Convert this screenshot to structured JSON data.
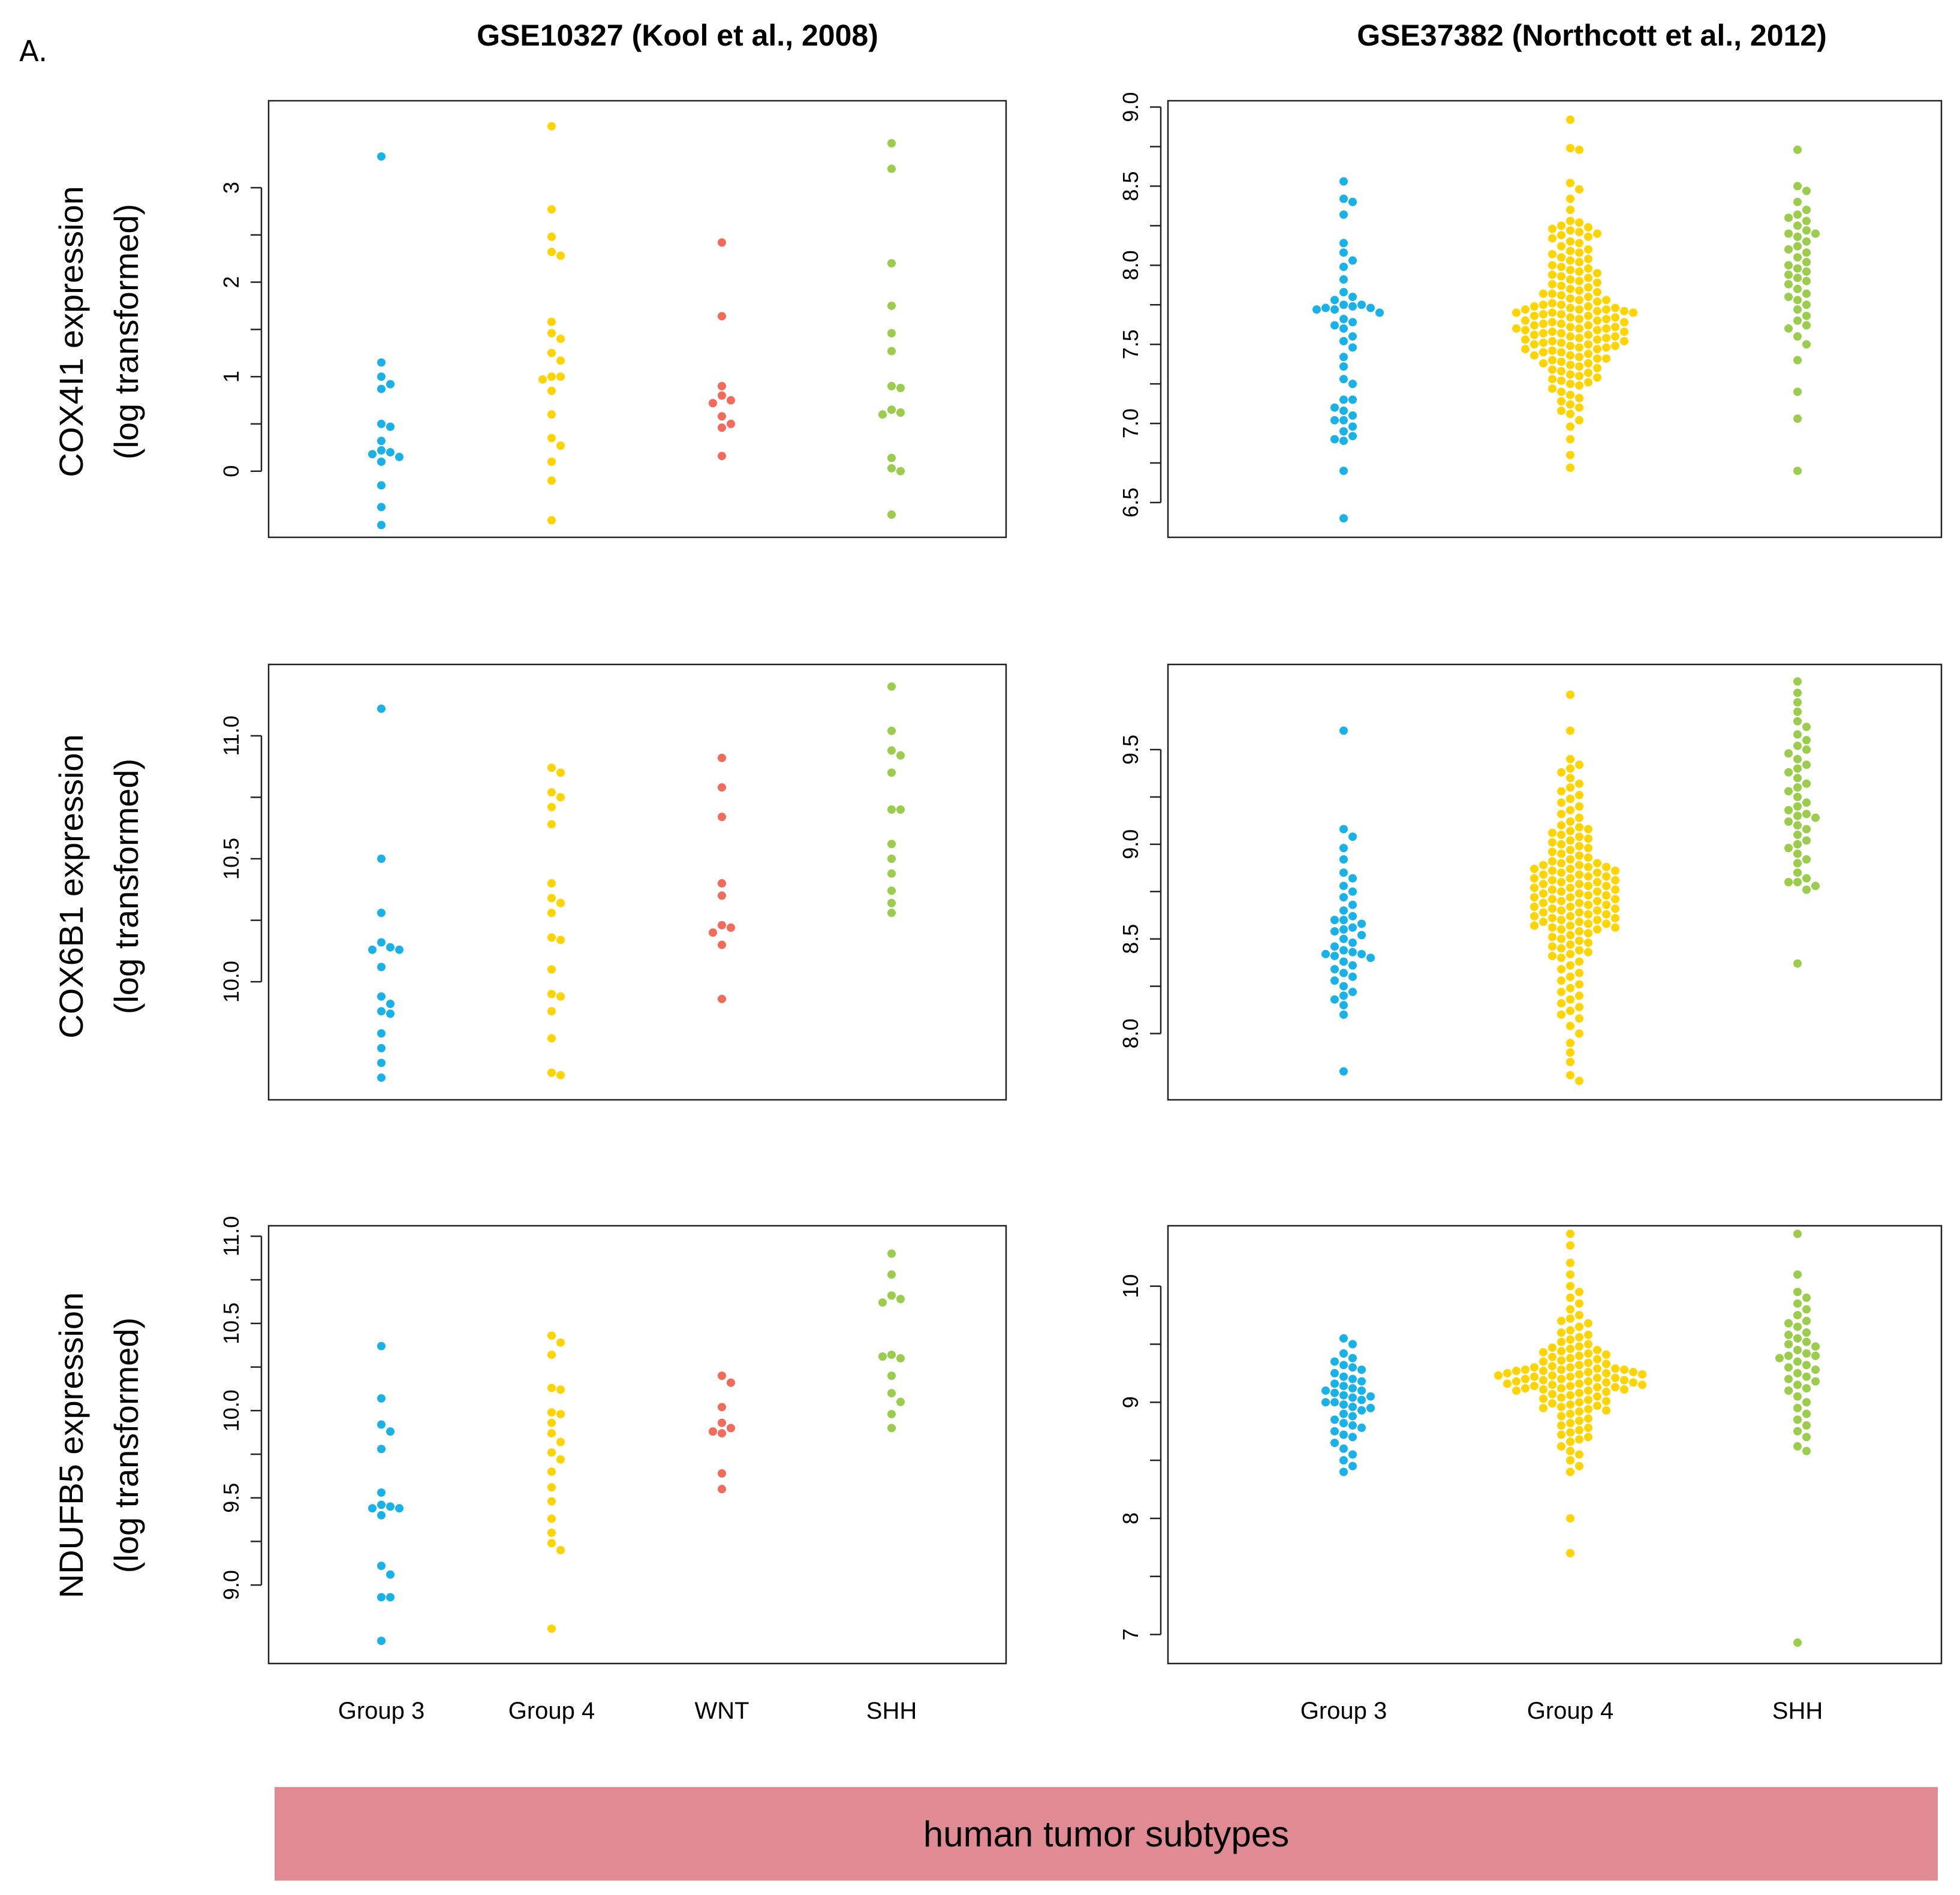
{
  "panel_label": "A.",
  "column_titles": [
    "GSE10327 (Kool et al., 2008)",
    "GSE37382 (Northcott et al., 2012)"
  ],
  "row_labels": [
    {
      "gene": "COX4I1 expression",
      "unit": "(log transformed)"
    },
    {
      "gene": "COX6B1 expression",
      "unit": "(log transformed)"
    },
    {
      "gene": "NDUFB5 expression",
      "unit": "(log transformed)"
    }
  ],
  "banner_label": "human tumor subtypes",
  "colors": {
    "Group 3": "#19b2e8",
    "Group 4": "#ffd400",
    "WNT": "#f26b5a",
    "SHH": "#9acd4c",
    "banner": "#e08a93"
  },
  "chart_data": [
    {
      "type": "scatter",
      "dataset": "GSE10327",
      "gene": "COX4I1",
      "categories": [
        "Group 3",
        "Group 4",
        "WNT",
        "SHH"
      ],
      "ylim": [
        -0.7,
        3.92
      ],
      "yticks": [
        0,
        1,
        2,
        3
      ],
      "grid": false,
      "series": [
        {
          "name": "Group 3",
          "values": [
            3.33,
            1.15,
            1.0,
            0.92,
            0.87,
            0.5,
            0.47,
            0.32,
            0.22,
            0.2,
            0.18,
            0.15,
            0.1,
            -0.15,
            -0.38,
            -0.57
          ]
        },
        {
          "name": "Group 4",
          "values": [
            3.65,
            2.77,
            2.48,
            2.32,
            2.28,
            1.58,
            1.46,
            1.4,
            1.25,
            1.17,
            1.0,
            1.0,
            0.97,
            0.85,
            0.6,
            0.35,
            0.27,
            0.1,
            -0.1,
            -0.52
          ]
        },
        {
          "name": "WNT",
          "values": [
            2.42,
            1.64,
            0.9,
            0.8,
            0.75,
            0.72,
            0.58,
            0.5,
            0.46,
            0.16
          ]
        },
        {
          "name": "SHH",
          "values": [
            3.47,
            3.2,
            2.2,
            1.75,
            1.46,
            1.27,
            0.9,
            0.88,
            0.65,
            0.62,
            0.6,
            0.14,
            0.03,
            0.0,
            -0.46
          ]
        }
      ]
    },
    {
      "type": "scatter",
      "dataset": "GSE37382",
      "gene": "COX4I1",
      "categories": [
        "Group 3",
        "Group 4",
        "SHH"
      ],
      "ylim": [
        6.28,
        9.04
      ],
      "yticks": [
        6.5,
        7.0,
        7.5,
        8.0,
        8.5,
        9.0
      ],
      "grid": false,
      "series": [
        {
          "name": "Group 3",
          "values": [
            8.53,
            8.42,
            8.4,
            8.32,
            8.14,
            8.08,
            8.03,
            7.99,
            7.91,
            7.83,
            7.8,
            7.78,
            7.75,
            7.75,
            7.74,
            7.73,
            7.73,
            7.72,
            7.72,
            7.7,
            7.66,
            7.64,
            7.62,
            7.6,
            7.55,
            7.52,
            7.48,
            7.42,
            7.36,
            7.28,
            7.25,
            7.15,
            7.15,
            7.1,
            7.08,
            7.05,
            7.02,
            7.02,
            6.98,
            6.95,
            6.92,
            6.89,
            6.9,
            6.7,
            6.4
          ]
        },
        {
          "name": "Group 4",
          "values": [
            8.92,
            8.74,
            8.73,
            8.52,
            8.48,
            8.42,
            8.35,
            8.28,
            8.27,
            8.25,
            8.24,
            8.23,
            8.22,
            8.21,
            8.2,
            8.19,
            8.18,
            8.17,
            8.15,
            8.14,
            8.12,
            8.1,
            8.09,
            8.08,
            8.07,
            8.05,
            8.04,
            8.03,
            8.02,
            8.0,
            7.99,
            7.98,
            7.97,
            7.96,
            7.95,
            7.94,
            7.93,
            7.92,
            7.91,
            7.9,
            7.89,
            7.88,
            7.87,
            7.86,
            7.85,
            7.84,
            7.83,
            7.82,
            7.82,
            7.81,
            7.8,
            7.79,
            7.78,
            7.78,
            7.77,
            7.76,
            7.75,
            7.75,
            7.74,
            7.74,
            7.73,
            7.73,
            7.72,
            7.72,
            7.72,
            7.71,
            7.71,
            7.7,
            7.7,
            7.7,
            7.69,
            7.69,
            7.68,
            7.68,
            7.67,
            7.67,
            7.66,
            7.66,
            7.65,
            7.65,
            7.64,
            7.64,
            7.63,
            7.63,
            7.62,
            7.62,
            7.61,
            7.61,
            7.6,
            7.6,
            7.6,
            7.59,
            7.59,
            7.58,
            7.58,
            7.57,
            7.57,
            7.56,
            7.56,
            7.55,
            7.55,
            7.54,
            7.54,
            7.53,
            7.53,
            7.52,
            7.52,
            7.51,
            7.51,
            7.5,
            7.5,
            7.49,
            7.49,
            7.48,
            7.48,
            7.47,
            7.47,
            7.46,
            7.45,
            7.45,
            7.44,
            7.43,
            7.43,
            7.42,
            7.41,
            7.41,
            7.4,
            7.39,
            7.38,
            7.38,
            7.37,
            7.36,
            7.35,
            7.34,
            7.33,
            7.32,
            7.31,
            7.3,
            7.29,
            7.28,
            7.27,
            7.26,
            7.25,
            7.24,
            7.22,
            7.2,
            7.18,
            7.16,
            7.14,
            7.12,
            7.1,
            7.08,
            7.06,
            7.02,
            6.98,
            6.9,
            6.8,
            6.72
          ]
        },
        {
          "name": "SHH",
          "values": [
            8.73,
            8.5,
            8.47,
            8.4,
            8.35,
            8.32,
            8.3,
            8.28,
            8.25,
            8.22,
            8.2,
            8.2,
            8.18,
            8.15,
            8.12,
            8.1,
            8.08,
            8.05,
            8.02,
            8.0,
            7.98,
            7.96,
            7.94,
            7.92,
            7.9,
            7.88,
            7.85,
            7.82,
            7.8,
            7.78,
            7.75,
            7.72,
            7.68,
            7.65,
            7.62,
            7.6,
            7.55,
            7.5,
            7.4,
            7.2,
            7.03,
            6.7
          ]
        }
      ]
    },
    {
      "type": "scatter",
      "dataset": "GSE10327",
      "gene": "COX6B1",
      "categories": [
        "Group 3",
        "Group 4",
        "WNT",
        "SHH"
      ],
      "ylim": [
        9.52,
        11.29
      ],
      "yticks": [
        10.0,
        10.5,
        11.0
      ],
      "grid": false,
      "series": [
        {
          "name": "Group 3",
          "values": [
            11.11,
            10.5,
            10.28,
            10.16,
            10.14,
            10.13,
            10.13,
            10.06,
            9.94,
            9.91,
            9.88,
            9.87,
            9.79,
            9.73,
            9.67,
            9.61
          ]
        },
        {
          "name": "Group 4",
          "values": [
            10.87,
            10.85,
            10.77,
            10.75,
            10.71,
            10.64,
            10.4,
            10.34,
            10.32,
            10.28,
            10.18,
            10.17,
            10.05,
            9.95,
            9.94,
            9.88,
            9.77,
            9.63,
            9.62
          ]
        },
        {
          "name": "WNT",
          "values": [
            10.91,
            10.79,
            10.67,
            10.4,
            10.35,
            10.23,
            10.22,
            10.2,
            10.15,
            9.93
          ]
        },
        {
          "name": "SHH",
          "values": [
            11.2,
            11.02,
            10.94,
            10.92,
            10.85,
            10.7,
            10.7,
            10.56,
            10.5,
            10.44,
            10.37,
            10.32,
            10.28
          ]
        }
      ]
    },
    {
      "type": "scatter",
      "dataset": "GSE37382",
      "gene": "COX6B1",
      "categories": [
        "Group 3",
        "Group 4",
        "SHH"
      ],
      "ylim": [
        7.65,
        9.95
      ],
      "yticks": [
        8.0,
        8.5,
        9.0,
        9.5
      ],
      "grid": false,
      "series": [
        {
          "name": "Group 3",
          "values": [
            9.6,
            9.08,
            9.04,
            8.98,
            8.92,
            8.85,
            8.82,
            8.78,
            8.75,
            8.72,
            8.68,
            8.65,
            8.62,
            8.6,
            8.6,
            8.58,
            8.56,
            8.55,
            8.54,
            8.52,
            8.5,
            8.48,
            8.46,
            8.44,
            8.43,
            8.42,
            8.42,
            8.41,
            8.4,
            8.38,
            8.36,
            8.34,
            8.32,
            8.3,
            8.28,
            8.25,
            8.22,
            8.2,
            8.18,
            8.15,
            8.1,
            7.8
          ]
        },
        {
          "name": "Group 4",
          "values": [
            9.79,
            9.6,
            9.45,
            9.42,
            9.4,
            9.38,
            9.35,
            9.32,
            9.3,
            9.28,
            9.26,
            9.24,
            9.22,
            9.2,
            9.18,
            9.16,
            9.14,
            9.12,
            9.1,
            9.09,
            9.08,
            9.07,
            9.06,
            9.05,
            9.04,
            9.03,
            9.02,
            9.01,
            9.0,
            8.99,
            8.98,
            8.97,
            8.96,
            8.95,
            8.94,
            8.93,
            8.92,
            8.91,
            8.9,
            8.9,
            8.89,
            8.89,
            8.88,
            8.88,
            8.87,
            8.87,
            8.86,
            8.86,
            8.85,
            8.85,
            8.84,
            8.84,
            8.83,
            8.83,
            8.82,
            8.82,
            8.81,
            8.81,
            8.8,
            8.8,
            8.79,
            8.79,
            8.78,
            8.78,
            8.77,
            8.77,
            8.76,
            8.76,
            8.75,
            8.75,
            8.74,
            8.74,
            8.73,
            8.73,
            8.72,
            8.72,
            8.71,
            8.71,
            8.7,
            8.7,
            8.69,
            8.69,
            8.68,
            8.68,
            8.67,
            8.67,
            8.66,
            8.66,
            8.65,
            8.65,
            8.64,
            8.64,
            8.63,
            8.63,
            8.62,
            8.62,
            8.61,
            8.61,
            8.6,
            8.6,
            8.59,
            8.59,
            8.58,
            8.58,
            8.57,
            8.57,
            8.56,
            8.56,
            8.55,
            8.55,
            8.54,
            8.53,
            8.52,
            8.51,
            8.5,
            8.49,
            8.48,
            8.47,
            8.46,
            8.45,
            8.44,
            8.43,
            8.42,
            8.41,
            8.4,
            8.38,
            8.36,
            8.34,
            8.32,
            8.3,
            8.28,
            8.26,
            8.24,
            8.22,
            8.2,
            8.18,
            8.16,
            8.14,
            8.12,
            8.1,
            8.08,
            8.04,
            8.0,
            7.95,
            7.9,
            7.85,
            7.78,
            7.75
          ]
        },
        {
          "name": "SHH",
          "values": [
            9.86,
            9.8,
            9.75,
            9.7,
            9.65,
            9.62,
            9.58,
            9.55,
            9.52,
            9.5,
            9.48,
            9.45,
            9.42,
            9.4,
            9.38,
            9.35,
            9.32,
            9.3,
            9.28,
            9.25,
            9.22,
            9.2,
            9.18,
            9.16,
            9.15,
            9.14,
            9.12,
            9.1,
            9.08,
            9.05,
            9.02,
            9.0,
            8.98,
            8.95,
            8.92,
            8.9,
            8.85,
            8.82,
            8.8,
            8.8,
            8.78,
            8.76,
            8.37
          ]
        }
      ]
    },
    {
      "type": "scatter",
      "dataset": "GSE10327",
      "gene": "NDUFB5",
      "categories": [
        "Group 3",
        "Group 4",
        "WNT",
        "SHH"
      ],
      "ylim": [
        8.55,
        11.06
      ],
      "yticks": [
        9.0,
        9.5,
        10.0,
        10.5,
        11.0
      ],
      "grid": false,
      "series": [
        {
          "name": "Group 3",
          "values": [
            10.37,
            10.07,
            9.92,
            9.88,
            9.78,
            9.53,
            9.46,
            9.45,
            9.44,
            9.44,
            9.4,
            9.11,
            9.06,
            8.93,
            8.93,
            8.68
          ]
        },
        {
          "name": "Group 4",
          "values": [
            10.43,
            10.39,
            10.32,
            10.13,
            10.12,
            9.99,
            9.98,
            9.93,
            9.87,
            9.82,
            9.76,
            9.72,
            9.65,
            9.56,
            9.48,
            9.38,
            9.3,
            9.24,
            9.2,
            8.75
          ]
        },
        {
          "name": "WNT",
          "values": [
            10.2,
            10.16,
            10.02,
            9.93,
            9.9,
            9.88,
            9.87,
            9.64,
            9.55
          ]
        },
        {
          "name": "SHH",
          "values": [
            10.9,
            10.78,
            10.66,
            10.64,
            10.62,
            10.32,
            10.3,
            10.31,
            10.2,
            10.1,
            10.05,
            9.98,
            9.9
          ]
        }
      ]
    },
    {
      "type": "scatter",
      "dataset": "GSE37382",
      "gene": "NDUFB5",
      "categories": [
        "Group 3",
        "Group 4",
        "SHH"
      ],
      "ylim": [
        6.75,
        10.52
      ],
      "yticks": [
        7.0,
        8.0,
        9.0,
        10.0
      ],
      "grid": false,
      "series": [
        {
          "name": "Group 3",
          "values": [
            9.55,
            9.5,
            9.42,
            9.38,
            9.35,
            9.32,
            9.3,
            9.28,
            9.25,
            9.22,
            9.2,
            9.18,
            9.16,
            9.14,
            9.12,
            9.1,
            9.1,
            9.08,
            9.06,
            9.05,
            9.04,
            9.02,
            9.0,
            9.0,
            8.98,
            8.96,
            8.95,
            8.93,
            8.9,
            8.88,
            8.85,
            8.82,
            8.8,
            8.78,
            8.75,
            8.72,
            8.7,
            8.65,
            8.6,
            8.55,
            8.5,
            8.45,
            8.4
          ]
        },
        {
          "name": "Group 4",
          "values": [
            10.45,
            10.35,
            10.2,
            10.1,
            10.0,
            9.95,
            9.9,
            9.85,
            9.8,
            9.75,
            9.72,
            9.7,
            9.68,
            9.65,
            9.62,
            9.6,
            9.58,
            9.56,
            9.54,
            9.52,
            9.5,
            9.48,
            9.47,
            9.46,
            9.45,
            9.44,
            9.43,
            9.42,
            9.41,
            9.4,
            9.39,
            9.38,
            9.37,
            9.36,
            9.35,
            9.34,
            9.33,
            9.32,
            9.31,
            9.3,
            9.3,
            9.29,
            9.29,
            9.28,
            9.28,
            9.28,
            9.27,
            9.27,
            9.26,
            9.26,
            9.25,
            9.25,
            9.24,
            9.24,
            9.23,
            9.23,
            9.22,
            9.22,
            9.21,
            9.21,
            9.2,
            9.2,
            9.19,
            9.19,
            9.18,
            9.18,
            9.17,
            9.17,
            9.16,
            9.16,
            9.15,
            9.15,
            9.14,
            9.14,
            9.13,
            9.13,
            9.12,
            9.12,
            9.11,
            9.11,
            9.1,
            9.1,
            9.09,
            9.08,
            9.07,
            9.06,
            9.05,
            9.04,
            9.03,
            9.02,
            9.01,
            9.0,
            8.99,
            8.98,
            8.97,
            8.96,
            8.95,
            8.94,
            8.93,
            8.92,
            8.9,
            8.88,
            8.86,
            8.84,
            8.82,
            8.8,
            8.78,
            8.76,
            8.74,
            8.72,
            8.7,
            8.68,
            8.66,
            8.62,
            8.58,
            8.55,
            8.5,
            8.45,
            8.4,
            8.0,
            7.7
          ]
        },
        {
          "name": "SHH",
          "values": [
            10.45,
            10.1,
            9.95,
            9.9,
            9.85,
            9.8,
            9.75,
            9.7,
            9.68,
            9.65,
            9.6,
            9.58,
            9.55,
            9.52,
            9.5,
            9.48,
            9.45,
            9.42,
            9.4,
            9.4,
            9.38,
            9.35,
            9.32,
            9.3,
            9.28,
            9.25,
            9.22,
            9.2,
            9.18,
            9.15,
            9.12,
            9.1,
            9.05,
            9.0,
            8.95,
            8.9,
            8.85,
            8.8,
            8.75,
            8.7,
            8.62,
            8.58,
            6.93
          ]
        }
      ]
    }
  ]
}
